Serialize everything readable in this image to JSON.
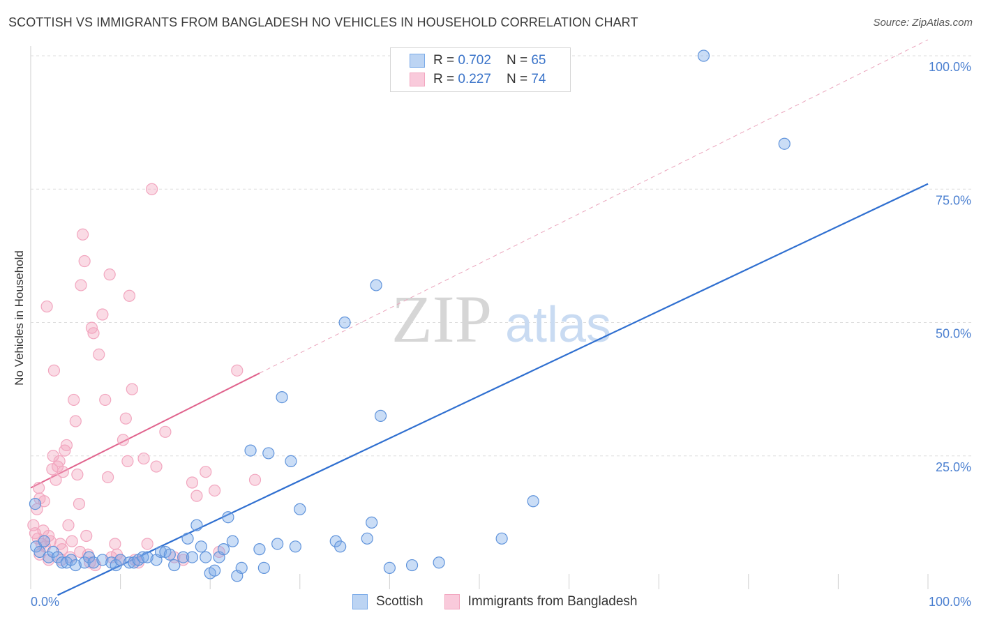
{
  "title": "SCOTTISH VS IMMIGRANTS FROM BANGLADESH NO VEHICLES IN HOUSEHOLD CORRELATION CHART",
  "source": "Source: ZipAtlas.com",
  "watermark": {
    "zip": "ZIP",
    "atlas": "atlas"
  },
  "legend": {
    "rows": [
      {
        "r_label": "R =",
        "r_value": "0.702",
        "n_label": "N =",
        "n_value": "65"
      },
      {
        "r_label": "R =",
        "r_value": "0.227",
        "n_label": "N =",
        "n_value": "74"
      }
    ]
  },
  "chart_data": {
    "type": "scatter",
    "xlabel": "",
    "ylabel": "No Vehicles in Household",
    "xlim": [
      0,
      100
    ],
    "ylim": [
      0,
      100
    ],
    "x_tick_labels": [
      {
        "value": 0,
        "label": "0.0%"
      },
      {
        "value": 100,
        "label": "100.0%"
      }
    ],
    "y_tick_labels": [
      {
        "value": 25,
        "label": "25.0%"
      },
      {
        "value": 50,
        "label": "50.0%"
      },
      {
        "value": 75,
        "label": "75.0%"
      },
      {
        "value": 100,
        "label": "100.0%"
      }
    ],
    "grid": true,
    "legend_placement": "bottom",
    "series": [
      {
        "name": "Scottish",
        "color": "#7aaae8",
        "line_color": "#2f6fd0",
        "trend": {
          "x0": 0,
          "y0": -3.5,
          "x1": 100,
          "y1": 76
        },
        "points": [
          [
            0.5,
            16
          ],
          [
            0.6,
            8
          ],
          [
            1.0,
            7
          ],
          [
            1.5,
            9
          ],
          [
            2.0,
            6
          ],
          [
            2.5,
            7
          ],
          [
            3.0,
            6
          ],
          [
            3.5,
            5
          ],
          [
            4.0,
            5
          ],
          [
            4.5,
            5.5
          ],
          [
            5.0,
            4.5
          ],
          [
            6.0,
            5
          ],
          [
            6.5,
            6
          ],
          [
            7.0,
            5
          ],
          [
            8.0,
            5.5
          ],
          [
            9.0,
            5
          ],
          [
            9.5,
            4.5
          ],
          [
            10.0,
            5.5
          ],
          [
            11.0,
            5
          ],
          [
            11.5,
            5
          ],
          [
            12.0,
            5.5
          ],
          [
            12.5,
            6
          ],
          [
            13.0,
            6
          ],
          [
            14.0,
            5.5
          ],
          [
            14.5,
            7
          ],
          [
            15.0,
            7
          ],
          [
            15.5,
            6.5
          ],
          [
            16.0,
            4.5
          ],
          [
            17.0,
            6
          ],
          [
            17.5,
            9.5
          ],
          [
            18.0,
            6
          ],
          [
            18.5,
            12
          ],
          [
            19.0,
            8
          ],
          [
            19.5,
            6
          ],
          [
            20.0,
            3
          ],
          [
            20.5,
            3.5
          ],
          [
            21.0,
            6
          ],
          [
            21.5,
            7.5
          ],
          [
            22.0,
            13.5
          ],
          [
            22.5,
            9
          ],
          [
            23.0,
            2.5
          ],
          [
            23.5,
            4
          ],
          [
            24.5,
            26
          ],
          [
            25.5,
            7.5
          ],
          [
            26.0,
            4
          ],
          [
            26.5,
            25.5
          ],
          [
            27.5,
            8.5
          ],
          [
            28.0,
            36
          ],
          [
            29.0,
            24
          ],
          [
            29.5,
            8
          ],
          [
            30.0,
            15
          ],
          [
            34.0,
            9
          ],
          [
            34.5,
            8
          ],
          [
            35.0,
            50
          ],
          [
            37.5,
            9.5
          ],
          [
            38.0,
            12.5
          ],
          [
            38.5,
            57
          ],
          [
            39.0,
            32.5
          ],
          [
            40.0,
            4
          ],
          [
            42.5,
            4.5
          ],
          [
            45.5,
            5
          ],
          [
            52.5,
            9.5
          ],
          [
            56.0,
            16.5
          ],
          [
            75.0,
            100
          ],
          [
            84.0,
            83.5
          ]
        ]
      },
      {
        "name": "Immigrants from Bangladesh",
        "color": "#f2a6bf",
        "line_color": "#e0638d",
        "trend": {
          "x0": 0,
          "y0": 19,
          "x1": 25.5,
          "y1": 40.5
        },
        "trend_ext": {
          "x0": 25.5,
          "y0": 40.5,
          "x1": 100,
          "y1": 103
        },
        "points": [
          [
            0.3,
            12
          ],
          [
            0.5,
            10.5
          ],
          [
            0.7,
            15
          ],
          [
            0.8,
            9.5
          ],
          [
            1.0,
            17
          ],
          [
            1.2,
            8.5
          ],
          [
            1.4,
            11
          ],
          [
            1.5,
            16.5
          ],
          [
            1.6,
            8
          ],
          [
            1.8,
            53
          ],
          [
            2.0,
            10
          ],
          [
            2.2,
            9
          ],
          [
            2.4,
            22.5
          ],
          [
            2.5,
            25
          ],
          [
            2.6,
            41
          ],
          [
            2.8,
            20.5
          ],
          [
            3.0,
            23
          ],
          [
            3.2,
            24
          ],
          [
            3.3,
            8.5
          ],
          [
            3.5,
            7.5
          ],
          [
            3.6,
            22
          ],
          [
            3.8,
            26
          ],
          [
            4.0,
            27
          ],
          [
            4.2,
            12
          ],
          [
            4.4,
            6
          ],
          [
            4.6,
            9
          ],
          [
            4.8,
            35.5
          ],
          [
            5.0,
            31.5
          ],
          [
            5.2,
            21.5
          ],
          [
            5.4,
            16
          ],
          [
            5.6,
            57
          ],
          [
            5.8,
            66.5
          ],
          [
            6.0,
            61.5
          ],
          [
            6.2,
            10
          ],
          [
            6.4,
            6.5
          ],
          [
            6.8,
            49
          ],
          [
            7.0,
            48
          ],
          [
            7.2,
            4.5
          ],
          [
            7.6,
            44
          ],
          [
            8.0,
            51.5
          ],
          [
            8.3,
            35.5
          ],
          [
            8.6,
            21
          ],
          [
            8.8,
            59
          ],
          [
            9.0,
            6
          ],
          [
            9.4,
            8.5
          ],
          [
            9.6,
            6.5
          ],
          [
            10.0,
            5.5
          ],
          [
            10.3,
            28
          ],
          [
            10.6,
            32
          ],
          [
            10.8,
            24
          ],
          [
            11.0,
            55
          ],
          [
            11.3,
            37.5
          ],
          [
            11.6,
            5.5
          ],
          [
            12.0,
            5
          ],
          [
            12.6,
            24.5
          ],
          [
            13.0,
            8.5
          ],
          [
            13.5,
            75
          ],
          [
            14.0,
            23
          ],
          [
            15.0,
            29.5
          ],
          [
            16.0,
            6
          ],
          [
            17.0,
            5.5
          ],
          [
            18.0,
            20
          ],
          [
            18.5,
            17.5
          ],
          [
            19.5,
            22
          ],
          [
            20.5,
            18.5
          ],
          [
            21.0,
            7
          ],
          [
            23.0,
            41
          ],
          [
            25.0,
            20.5
          ],
          [
            5.5,
            7
          ],
          [
            1.0,
            6.5
          ],
          [
            2.0,
            5.5
          ],
          [
            3.4,
            5.5
          ],
          [
            6.6,
            5
          ],
          [
            0.9,
            19
          ]
        ]
      }
    ]
  }
}
